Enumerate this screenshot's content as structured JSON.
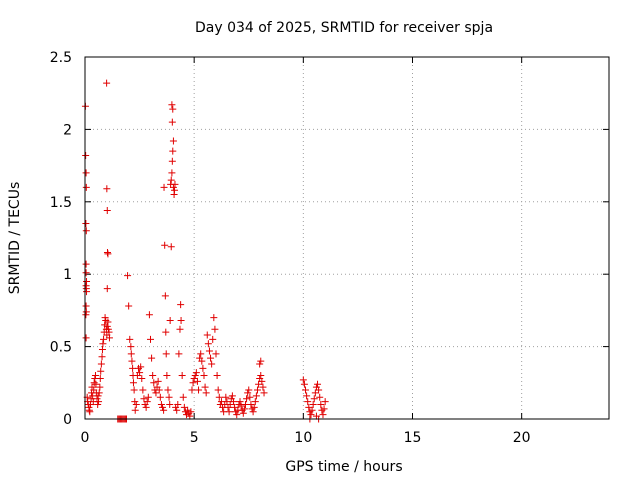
{
  "chart_data": {
    "type": "scatter",
    "title": "Day 034 of 2025, SRMTID for receiver spja",
    "xlabel": "GPS time / hours",
    "ylabel": "SRMTID / TECUs",
    "xlim": [
      0,
      24
    ],
    "ylim": [
      0,
      2.5
    ],
    "xticks": [
      0,
      5,
      10,
      15,
      20
    ],
    "yticks": [
      0,
      0.5,
      1,
      1.5,
      2,
      2.5
    ],
    "xtick_labels": [
      "0",
      "5",
      "10",
      "15",
      "20"
    ],
    "ytick_labels": [
      "0",
      "0.5",
      "1",
      "1.5",
      "2",
      "2.5"
    ],
    "grid": true,
    "marker": "+",
    "color": "#e00000",
    "series": [
      {
        "name": "spja",
        "points": [
          [
            0.02,
            2.16
          ],
          [
            0.03,
            1.82
          ],
          [
            0.05,
            1.7
          ],
          [
            0.06,
            1.6
          ],
          [
            0.04,
            1.35
          ],
          [
            0.06,
            1.3
          ],
          [
            0.05,
            1.07
          ],
          [
            0.05,
            1.01
          ],
          [
            0.07,
            0.95
          ],
          [
            0.05,
            0.92
          ],
          [
            0.06,
            0.9
          ],
          [
            0.07,
            0.88
          ],
          [
            0.05,
            0.78
          ],
          [
            0.06,
            0.74
          ],
          [
            0.04,
            0.72
          ],
          [
            0.05,
            0.56
          ],
          [
            0.1,
            0.15
          ],
          [
            0.12,
            0.12
          ],
          [
            0.15,
            0.1
          ],
          [
            0.18,
            0.08
          ],
          [
            0.2,
            0.06
          ],
          [
            0.22,
            0.05
          ],
          [
            0.25,
            0.1
          ],
          [
            0.28,
            0.14
          ],
          [
            0.3,
            0.18
          ],
          [
            0.32,
            0.22
          ],
          [
            0.35,
            0.16
          ],
          [
            0.38,
            0.12
          ],
          [
            0.4,
            0.2
          ],
          [
            0.42,
            0.25
          ],
          [
            0.45,
            0.28
          ],
          [
            0.48,
            0.3
          ],
          [
            0.5,
            0.24
          ],
          [
            0.52,
            0.18
          ],
          [
            0.55,
            0.14
          ],
          [
            0.58,
            0.1
          ],
          [
            0.6,
            0.16
          ],
          [
            0.62,
            0.12
          ],
          [
            0.65,
            0.18
          ],
          [
            0.68,
            0.22
          ],
          [
            0.7,
            0.28
          ],
          [
            0.72,
            0.33
          ],
          [
            0.75,
            0.38
          ],
          [
            0.78,
            0.43
          ],
          [
            0.8,
            0.48
          ],
          [
            0.82,
            0.52
          ],
          [
            0.85,
            0.55
          ],
          [
            0.88,
            0.6
          ],
          [
            0.9,
            0.65
          ],
          [
            0.92,
            0.7
          ],
          [
            0.95,
            0.68
          ],
          [
            0.98,
            0.62
          ],
          [
            1.0,
            0.58
          ],
          [
            1.02,
            0.64
          ],
          [
            1.05,
            0.67
          ],
          [
            1.07,
            0.62
          ],
          [
            1.1,
            0.6
          ],
          [
            1.12,
            0.56
          ],
          [
            0.99,
            2.32
          ],
          [
            1.0,
            1.59
          ],
          [
            1.02,
            1.44
          ],
          [
            1.03,
            1.15
          ],
          [
            1.05,
            1.14
          ],
          [
            1.02,
            0.9
          ],
          [
            1.5,
            0.0
          ],
          [
            1.55,
            0.0
          ],
          [
            1.6,
            0.0
          ],
          [
            1.65,
            0.0
          ],
          [
            1.7,
            0.0
          ],
          [
            1.75,
            0.0
          ],
          [
            1.8,
            0.0
          ],
          [
            1.85,
            0.0
          ],
          [
            1.9,
            0.0
          ],
          [
            1.95,
            0.99
          ],
          [
            2.0,
            0.78
          ],
          [
            2.05,
            0.55
          ],
          [
            2.1,
            0.5
          ],
          [
            2.12,
            0.45
          ],
          [
            2.15,
            0.4
          ],
          [
            2.18,
            0.35
          ],
          [
            2.2,
            0.3
          ],
          [
            2.22,
            0.25
          ],
          [
            2.25,
            0.2
          ],
          [
            2.28,
            0.12
          ],
          [
            2.3,
            0.06
          ],
          [
            2.35,
            0.1
          ],
          [
            2.4,
            0.3
          ],
          [
            2.45,
            0.35
          ],
          [
            2.5,
            0.32
          ],
          [
            2.55,
            0.36
          ],
          [
            2.6,
            0.28
          ],
          [
            2.65,
            0.2
          ],
          [
            2.7,
            0.14
          ],
          [
            2.75,
            0.1
          ],
          [
            2.8,
            0.08
          ],
          [
            2.85,
            0.12
          ],
          [
            2.9,
            0.15
          ],
          [
            2.95,
            0.72
          ],
          [
            3.0,
            0.55
          ],
          [
            3.05,
            0.42
          ],
          [
            3.1,
            0.3
          ],
          [
            3.15,
            0.25
          ],
          [
            3.2,
            0.2
          ],
          [
            3.25,
            0.18
          ],
          [
            3.3,
            0.22
          ],
          [
            3.35,
            0.26
          ],
          [
            3.4,
            0.2
          ],
          [
            3.45,
            0.15
          ],
          [
            3.5,
            0.1
          ],
          [
            3.55,
            0.08
          ],
          [
            3.6,
            0.06
          ],
          [
            3.62,
            1.6
          ],
          [
            3.65,
            1.2
          ],
          [
            3.68,
            0.85
          ],
          [
            3.7,
            0.6
          ],
          [
            3.72,
            0.45
          ],
          [
            3.75,
            0.3
          ],
          [
            3.8,
            0.2
          ],
          [
            3.85,
            0.15
          ],
          [
            3.88,
            0.1
          ],
          [
            3.9,
            0.68
          ],
          [
            3.95,
            1.19
          ],
          [
            3.92,
            1.62
          ],
          [
            3.95,
            1.65
          ],
          [
            3.98,
            1.7
          ],
          [
            4.0,
            1.78
          ],
          [
            4.02,
            1.85
          ],
          [
            4.05,
            1.92
          ],
          [
            4.0,
            2.05
          ],
          [
            4.02,
            2.14
          ],
          [
            3.98,
            2.17
          ],
          [
            4.05,
            1.6
          ],
          [
            4.08,
            1.55
          ],
          [
            4.1,
            1.58
          ],
          [
            4.12,
            1.62
          ],
          [
            4.15,
            0.08
          ],
          [
            4.2,
            0.06
          ],
          [
            4.25,
            0.1
          ],
          [
            4.3,
            0.45
          ],
          [
            4.35,
            0.62
          ],
          [
            4.38,
            0.79
          ],
          [
            4.4,
            0.68
          ],
          [
            4.45,
            0.3
          ],
          [
            4.5,
            0.15
          ],
          [
            4.55,
            0.08
          ],
          [
            4.6,
            0.05
          ],
          [
            4.65,
            0.03
          ],
          [
            4.7,
            0.06
          ],
          [
            4.75,
            0.04
          ],
          [
            4.8,
            0.02
          ],
          [
            4.85,
            0.05
          ],
          [
            4.9,
            0.2
          ],
          [
            4.95,
            0.25
          ],
          [
            5.0,
            0.28
          ],
          [
            5.05,
            0.3
          ],
          [
            5.1,
            0.32
          ],
          [
            5.15,
            0.26
          ],
          [
            5.2,
            0.2
          ],
          [
            5.25,
            0.42
          ],
          [
            5.3,
            0.45
          ],
          [
            5.35,
            0.4
          ],
          [
            5.4,
            0.35
          ],
          [
            5.45,
            0.3
          ],
          [
            5.5,
            0.22
          ],
          [
            5.55,
            0.18
          ],
          [
            5.6,
            0.58
          ],
          [
            5.65,
            0.52
          ],
          [
            5.7,
            0.47
          ],
          [
            5.75,
            0.42
          ],
          [
            5.8,
            0.38
          ],
          [
            5.85,
            0.55
          ],
          [
            5.9,
            0.7
          ],
          [
            5.95,
            0.62
          ],
          [
            6.0,
            0.45
          ],
          [
            6.05,
            0.3
          ],
          [
            6.1,
            0.2
          ],
          [
            6.15,
            0.15
          ],
          [
            6.2,
            0.1
          ],
          [
            6.25,
            0.12
          ],
          [
            6.3,
            0.08
          ],
          [
            6.35,
            0.05
          ],
          [
            6.4,
            0.1
          ],
          [
            6.45,
            0.15
          ],
          [
            6.5,
            0.12
          ],
          [
            6.55,
            0.08
          ],
          [
            6.6,
            0.05
          ],
          [
            6.65,
            0.1
          ],
          [
            6.7,
            0.14
          ],
          [
            6.75,
            0.16
          ],
          [
            6.8,
            0.12
          ],
          [
            6.85,
            0.08
          ],
          [
            6.9,
            0.05
          ],
          [
            6.95,
            0.03
          ],
          [
            7.0,
            0.06
          ],
          [
            7.05,
            0.1
          ],
          [
            7.1,
            0.12
          ],
          [
            7.15,
            0.09
          ],
          [
            7.2,
            0.06
          ],
          [
            7.25,
            0.04
          ],
          [
            7.3,
            0.07
          ],
          [
            7.35,
            0.1
          ],
          [
            7.4,
            0.14
          ],
          [
            7.45,
            0.18
          ],
          [
            7.5,
            0.2
          ],
          [
            7.55,
            0.15
          ],
          [
            7.6,
            0.1
          ],
          [
            7.65,
            0.07
          ],
          [
            7.7,
            0.05
          ],
          [
            7.75,
            0.08
          ],
          [
            7.8,
            0.12
          ],
          [
            7.85,
            0.16
          ],
          [
            7.9,
            0.2
          ],
          [
            7.95,
            0.24
          ],
          [
            8.0,
            0.28
          ],
          [
            8.05,
            0.3
          ],
          [
            8.1,
            0.26
          ],
          [
            8.15,
            0.22
          ],
          [
            8.2,
            0.18
          ],
          [
            8.0,
            0.38
          ],
          [
            8.05,
            0.4
          ],
          [
            10.0,
            0.27
          ],
          [
            10.05,
            0.24
          ],
          [
            10.1,
            0.2
          ],
          [
            10.15,
            0.16
          ],
          [
            10.2,
            0.12
          ],
          [
            10.25,
            0.08
          ],
          [
            10.3,
            0.05
          ],
          [
            10.35,
            0.03
          ],
          [
            10.4,
            0.06
          ],
          [
            10.45,
            0.1
          ],
          [
            10.5,
            0.14
          ],
          [
            10.55,
            0.18
          ],
          [
            10.6,
            0.22
          ],
          [
            10.65,
            0.24
          ],
          [
            10.7,
            0.2
          ],
          [
            10.75,
            0.15
          ],
          [
            10.8,
            0.1
          ],
          [
            10.85,
            0.06
          ],
          [
            10.9,
            0.03
          ],
          [
            10.95,
            0.07
          ],
          [
            11.0,
            0.12
          ],
          [
            10.6,
            0.02
          ],
          [
            10.3,
            0.0
          ],
          [
            10.7,
            0.0
          ]
        ]
      }
    ]
  }
}
